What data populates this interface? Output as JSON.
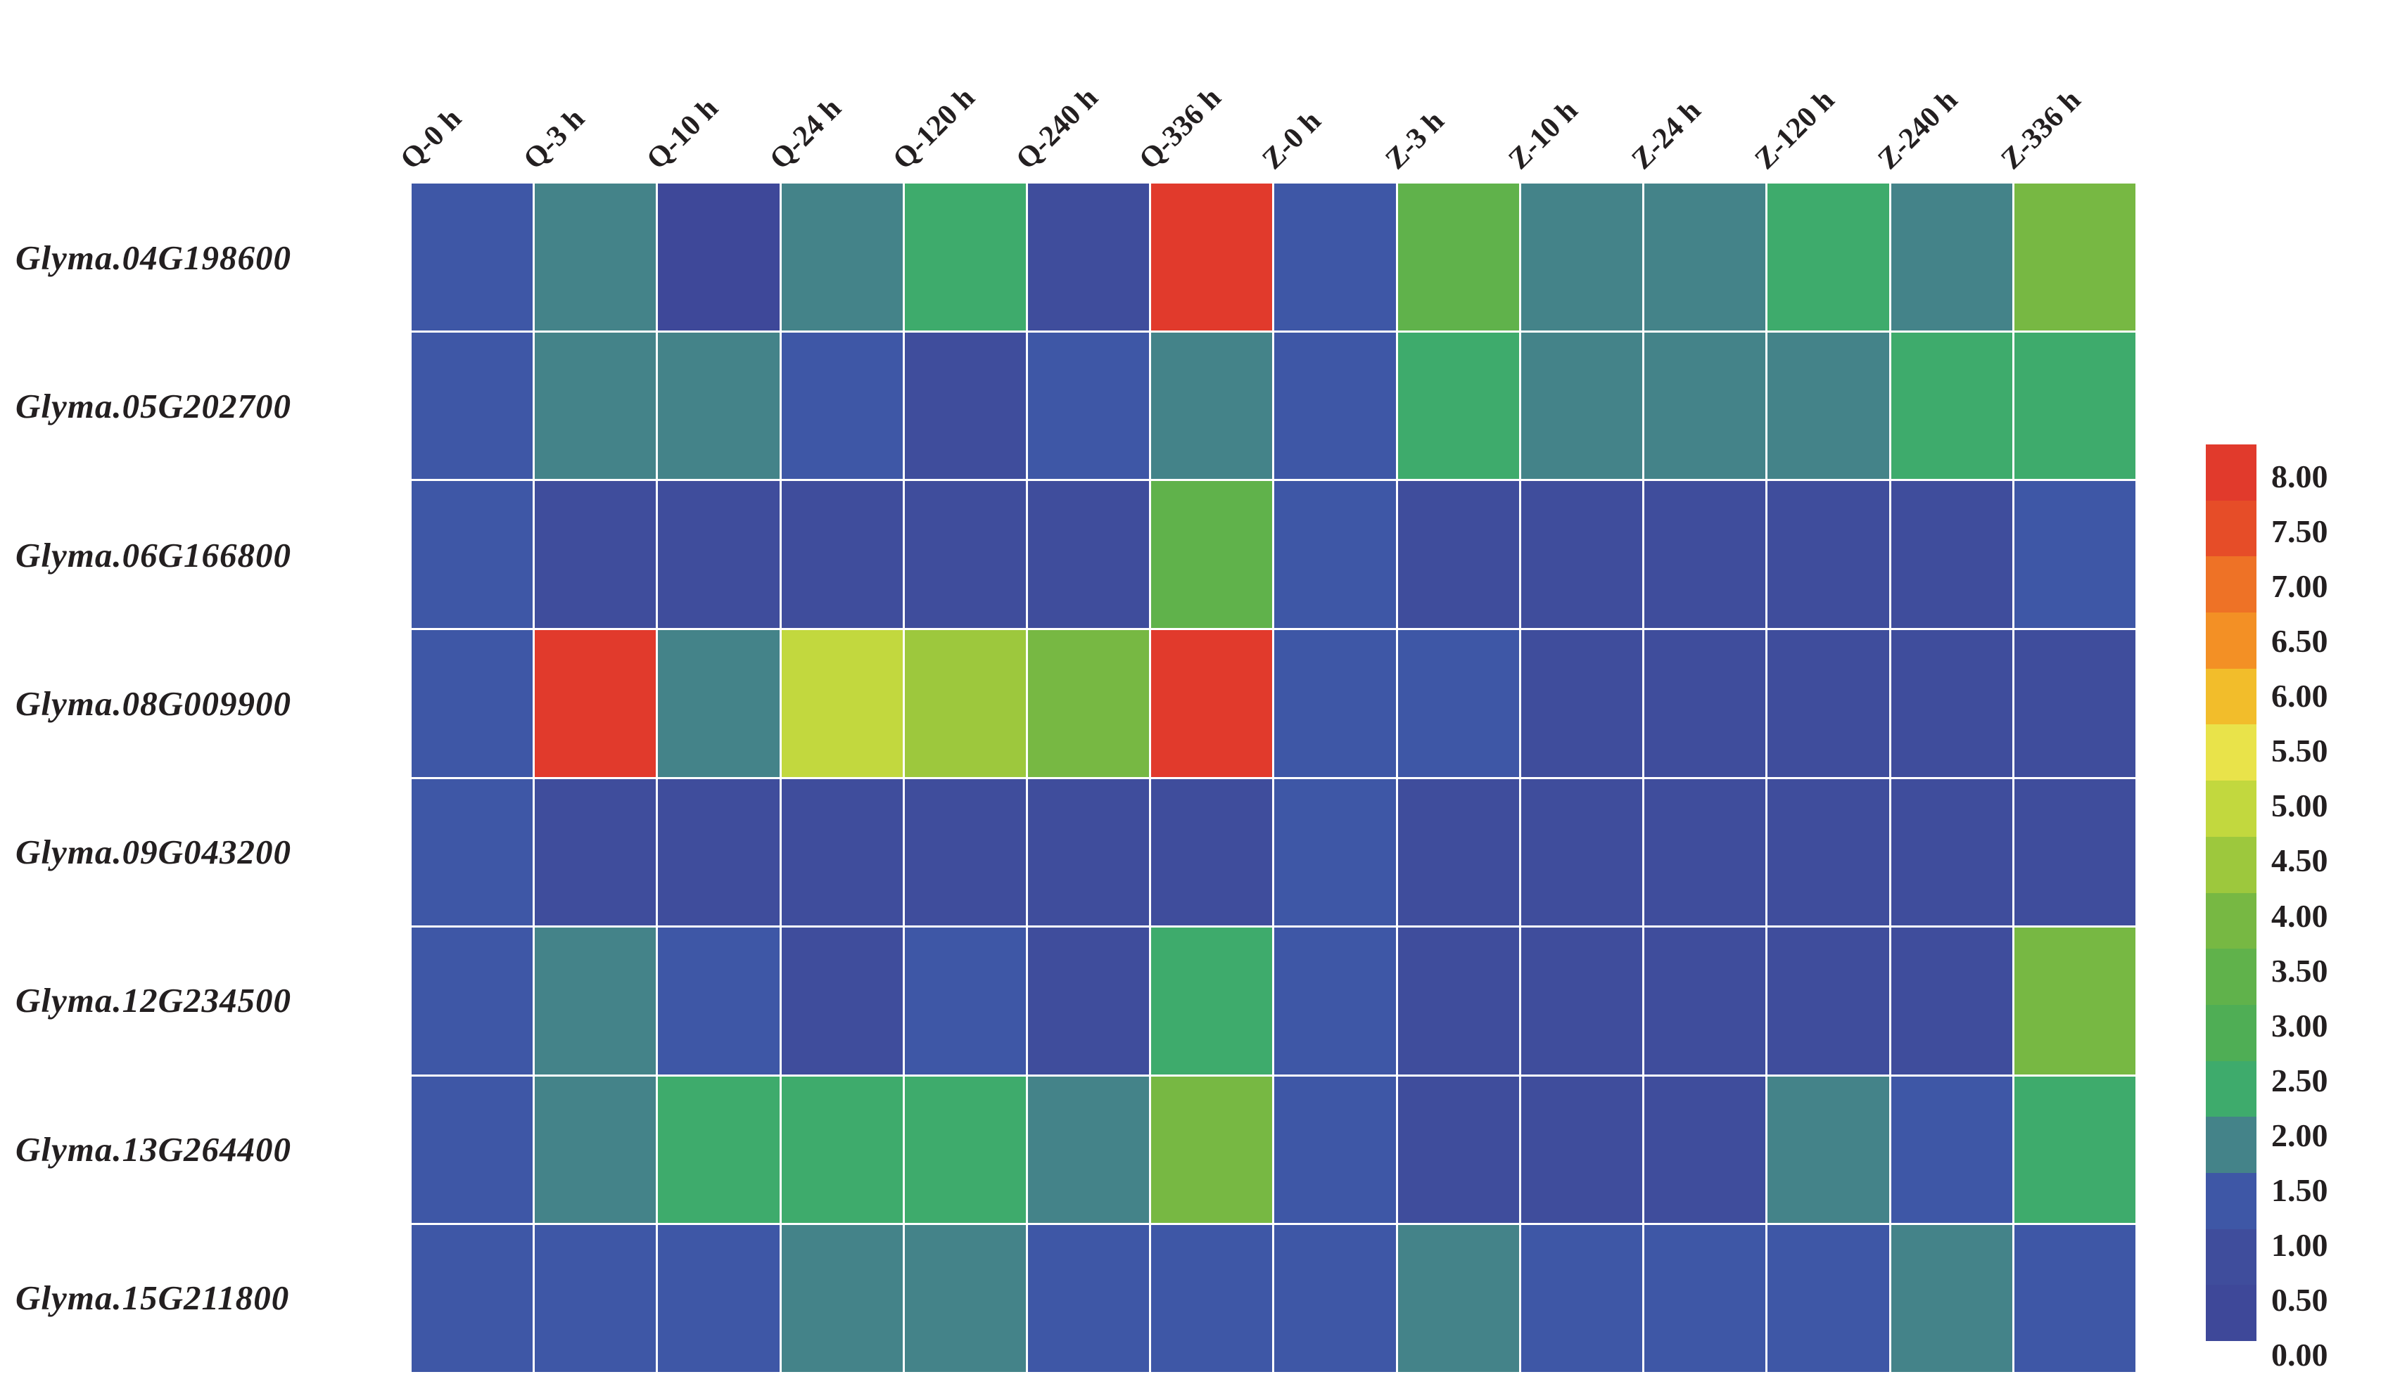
{
  "figure": {
    "description": "Gene expression heatmap of Glyma genes across Q and Z time-course samples"
  },
  "chart_data": {
    "type": "heatmap",
    "columns": [
      "Q-0 h",
      "Q-3 h",
      "Q-10 h",
      "Q-24 h",
      "Q-120 h",
      "Q-240 h",
      "Q-336 h",
      "Z-0 h",
      "Z-3 h",
      "Z-10 h",
      "Z-24 h",
      "Z-120 h",
      "Z-240 h",
      "Z-336 h"
    ],
    "rows": [
      "Glyma.04G198600",
      "Glyma.05G202700",
      "Glyma.06G166800",
      "Glyma.08G009900",
      "Glyma.09G043200",
      "Glyma.12G234500",
      "Glyma.13G264400",
      "Glyma.15G211800"
    ],
    "values": [
      [
        1.0,
        1.7,
        0.4,
        1.7,
        2.3,
        0.6,
        8.0,
        1.0,
        3.2,
        1.7,
        1.7,
        2.3,
        1.7,
        3.7
      ],
      [
        1.0,
        1.7,
        1.7,
        1.1,
        0.6,
        1.1,
        1.7,
        1.0,
        2.2,
        1.7,
        1.7,
        1.7,
        2.2,
        2.2
      ],
      [
        1.0,
        0.7,
        0.7,
        0.6,
        0.6,
        0.7,
        3.1,
        1.0,
        0.7,
        0.7,
        0.7,
        0.6,
        0.7,
        1.1
      ],
      [
        1.0,
        8.0,
        1.6,
        4.7,
        4.3,
        3.8,
        8.0,
        1.0,
        1.2,
        0.5,
        0.8,
        0.8,
        0.8,
        0.7
      ],
      [
        1.0,
        0.6,
        0.7,
        0.8,
        0.8,
        0.6,
        0.7,
        1.0,
        0.8,
        0.8,
        0.9,
        0.8,
        0.8,
        0.9
      ],
      [
        1.0,
        1.7,
        1.1,
        0.6,
        1.1,
        0.9,
        2.2,
        1.0,
        0.8,
        0.8,
        0.8,
        0.8,
        0.9,
        3.7
      ],
      [
        1.0,
        1.7,
        2.2,
        2.2,
        2.2,
        1.7,
        3.7,
        1.0,
        0.6,
        0.6,
        0.6,
        1.7,
        1.2,
        2.2
      ],
      [
        1.0,
        1.0,
        1.0,
        1.7,
        1.7,
        1.0,
        1.0,
        1.0,
        1.7,
        1.1,
        1.1,
        1.1,
        1.7,
        1.0
      ]
    ],
    "value_min": 0.0,
    "value_max": 8.0,
    "value_step": 0.5,
    "palette_low_to_high": [
      "#3e4899",
      "#3f4d9c",
      "#3e57a6",
      "#448389",
      "#3eab6c",
      "#4fae55",
      "#60b24b",
      "#77b843",
      "#9dc83d",
      "#c2d83e",
      "#e9e34a",
      "#f2bd2b",
      "#f39025",
      "#ee7226",
      "#e64d28",
      "#e13a2c"
    ],
    "gridline_color": "#ffffff",
    "legend": {
      "position": "right",
      "tick_labels": [
        "8.00",
        "7.50",
        "7.00",
        "6.50",
        "6.00",
        "5.50",
        "5.00",
        "4.50",
        "4.00",
        "3.50",
        "3.00",
        "2.50",
        "2.00",
        "1.50",
        "1.00",
        "0.50",
        "0.00"
      ]
    },
    "layout_hints": {
      "grid_on": false,
      "x_tick_rotation_deg": 45,
      "row_label_style": "bold italic serif",
      "column_label_style": "bold serif"
    }
  }
}
